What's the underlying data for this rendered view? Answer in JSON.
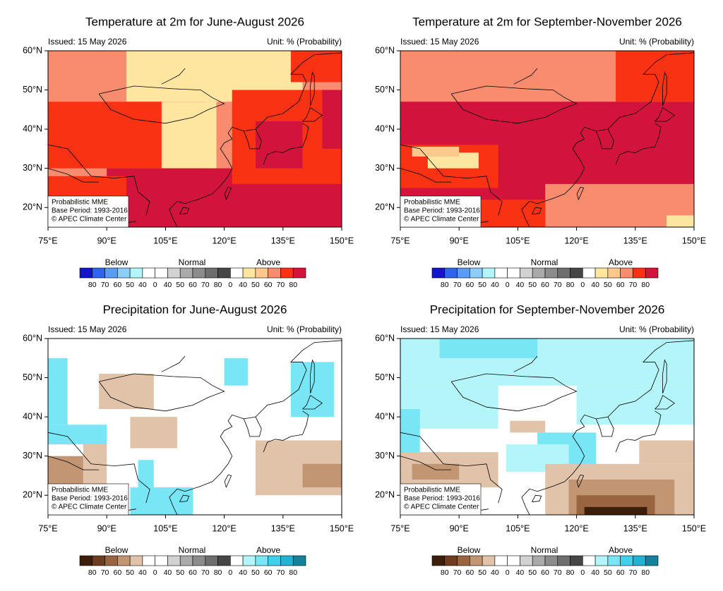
{
  "axes": {
    "xticks": [
      "75°E",
      "90°E",
      "105°E",
      "120°E",
      "135°E",
      "150°E"
    ],
    "yticks": [
      "60°N",
      "50°N",
      "40°N",
      "30°N",
      "20°N"
    ]
  },
  "legends": {
    "temperature": {
      "groups": [
        "Below",
        "Normal",
        "Above"
      ],
      "labels": [
        "80",
        "70",
        "60",
        "50",
        "40",
        "0",
        "40",
        "50",
        "60",
        "70",
        "80",
        "0",
        "40",
        "50",
        "60",
        "70",
        "80"
      ],
      "colors": [
        "#1414c8",
        "#2d64f0",
        "#5a9bf5",
        "#8ccdfa",
        "#b4f5fa",
        "#ffffff",
        "#ffffff",
        "#d2d2d2",
        "#aaaaaa",
        "#8c8c8c",
        "#6e6e6e",
        "#464646",
        "#ffffff",
        "#ffe6a0",
        "#fdc88c",
        "#f98c6e",
        "#fa3214",
        "#d2143c"
      ]
    },
    "precipitation": {
      "groups": [
        "Below",
        "Normal",
        "Above"
      ],
      "labels": [
        "80",
        "70",
        "60",
        "50",
        "40",
        "0",
        "40",
        "50",
        "60",
        "70",
        "80",
        "0",
        "40",
        "50",
        "60",
        "70",
        "80"
      ],
      "colors": [
        "#3c1e0a",
        "#6e3c1e",
        "#9b6441",
        "#c39673",
        "#e1c3aa",
        "#ffffff",
        "#ffffff",
        "#d2d2d2",
        "#aaaaaa",
        "#8c8c8c",
        "#6e6e6e",
        "#464646",
        "#ffffff",
        "#b4f5fa",
        "#78e6f5",
        "#3cd2eb",
        "#1eb4d2",
        "#14829b"
      ]
    }
  },
  "panels": [
    {
      "title": "Temperature at 2m for June-August 2026",
      "issued": "Issued: 15 May 2026",
      "unit": "Unit: % (Probability)",
      "legend": "temperature",
      "note": [
        "Probabilistic MME",
        "Base Period: 1993-2016",
        "© APEC Climate Center"
      ]
    },
    {
      "title": "Temperature at 2m for September-November 2026",
      "issued": "Issued: 15 May 2026",
      "unit": "Unit: % (Probability)",
      "legend": "temperature",
      "note": [
        "Probabilistic MME",
        "Base Period: 1993-2016",
        "© APEC Climate Center"
      ]
    },
    {
      "title": "Precipitation for June-August 2026",
      "issued": "Issued: 15 May 2026",
      "unit": "Unit: % (Probability)",
      "legend": "precipitation",
      "note": [
        "Probabilistic MME",
        "Base Period: 1993-2016",
        "© APEC Climate Center"
      ]
    },
    {
      "title": "Precipitation for September-November 2026",
      "issued": "Issued: 15 May 2026",
      "unit": "Unit: % (Probability)",
      "legend": "precipitation",
      "note": [
        "Probabilistic MME",
        "Base Period: 1993-2016",
        "© APEC Climate Center"
      ]
    }
  ]
}
